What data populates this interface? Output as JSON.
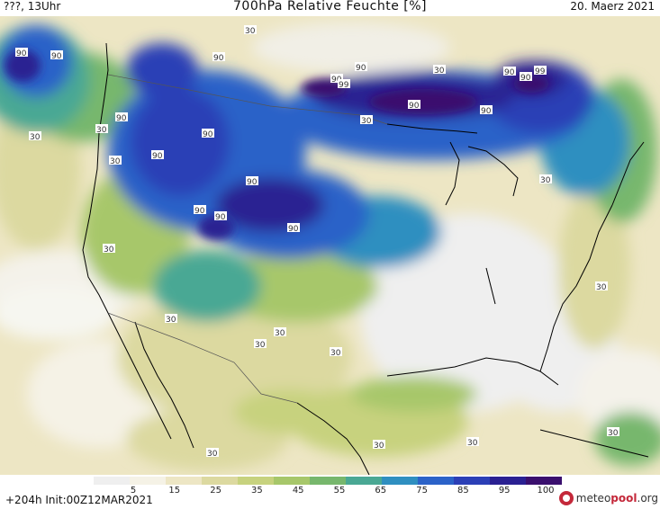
{
  "header": {
    "left": "???, 13Uhr",
    "title": "700hPa Relative Feuchte [%]",
    "date": "20. Maerz 2021"
  },
  "colors": {
    "scale": [
      "#efefef",
      "#f5f2e6",
      "#ede6c4",
      "#dcd9a0",
      "#c7d27e",
      "#a7c76a",
      "#77b76d",
      "#4aa894",
      "#2f8fc0",
      "#2b62c8",
      "#2b3fb6",
      "#2a2092",
      "#3a0f6e"
    ],
    "coast": "#000000",
    "border": "#555555",
    "logo": "#c4283a"
  },
  "legend": {
    "ticks": [
      "5",
      "15",
      "25",
      "35",
      "45",
      "55",
      "65",
      "75",
      "85",
      "95",
      "100"
    ],
    "init": "+204h Init:00Z12MAR2021",
    "logo_a": "meteo",
    "logo_b": "pool",
    "logo_c": ".org"
  },
  "map_labels": {
    "l1": "90",
    "l2": "90",
    "l3": "30",
    "l4": "90",
    "l5": "90",
    "l6": "90",
    "l7": "90",
    "l8": "99",
    "l9": "90",
    "l10": "30",
    "l11": "90",
    "l12": "90",
    "l13": "30",
    "l14": "90",
    "l15": "90",
    "l16": "30",
    "l17": "90",
    "l18": "90",
    "l19": "90",
    "l20": "90",
    "l21": "30",
    "l22": "30",
    "l23": "30",
    "l24": "30",
    "l25": "30",
    "l26": "30",
    "l27": "30",
    "l28": "30",
    "l29": "30",
    "l30": "30",
    "l31": "30",
    "l32": "30",
    "l33": "30",
    "l34": "90",
    "l35": "99"
  }
}
